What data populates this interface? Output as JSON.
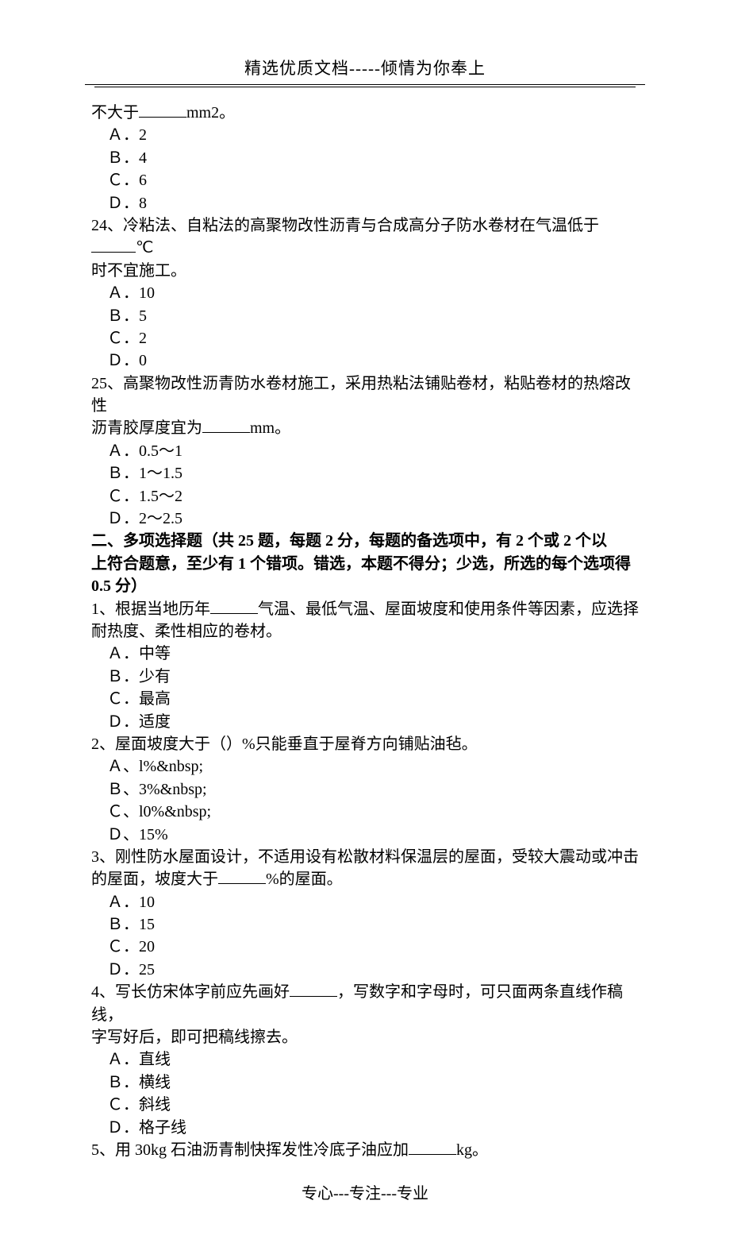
{
  "header": {
    "title": "精选优质文档-----倾情为你奉上"
  },
  "footer": {
    "text": "专心---专注---专业"
  },
  "blank_widths": {
    "w60": 60,
    "w56": 56
  },
  "content": {
    "q23_tail": {
      "pre": "不大于",
      "post": "mm2。",
      "opts": [
        "Ａ．2",
        "Ｂ．4",
        "Ｃ．6",
        "Ｄ．8"
      ]
    },
    "q24": {
      "pre": "24、冷粘法、自粘法的高聚物改性沥青与合成高分子防水卷材在气温低于",
      "post": "℃",
      "tail": "时不宜施工。",
      "opts": [
        "Ａ．10",
        "Ｂ．5",
        "Ｃ．2",
        "Ｄ．0"
      ]
    },
    "q25": {
      "line1": "25、高聚物改性沥青防水卷材施工，采用热粘法铺贴卷材，粘贴卷材的热熔改性",
      "pre2": "沥青胶厚度宜为",
      "post2": "mm。",
      "opts": [
        "Ａ．0.5～1",
        "Ｂ．1～1.5",
        "Ｃ．1.5～2",
        "Ｄ．2～2.5"
      ]
    },
    "section2": {
      "l1": "二、多项选择题（共 25 题，每题 2 分，每题的备选项中，有 2 个或 2 个以",
      "l2": "上符合题意，至少有 1 个错项。错选，本题不得分；少选，所选的每个选项得",
      "l3": "0.5 分）"
    },
    "m1": {
      "pre": "1、根据当地历年",
      "post": "气温、最低气温、屋面坡度和使用条件等因素，应选择",
      "tail": "耐热度、柔性相应的卷材。",
      "opts": [
        "Ａ．中等",
        "Ｂ．少有",
        "Ｃ．最高",
        "Ｄ．适度"
      ]
    },
    "m2": {
      "text": "2、屋面坡度大于（）%只能垂直于屋脊方向铺贴油毡。",
      "opts": [
        "Ａ、l%&nbsp;",
        "Ｂ、3%&nbsp;",
        "Ｃ、l0%&nbsp;",
        "Ｄ、15%"
      ]
    },
    "m3": {
      "line1": "3、刚性防水屋面设计，不适用设有松散材料保温层的屋面，受较大震动或冲击",
      "pre2": "的屋面，坡度大于",
      "post2": "%的屋面。",
      "opts": [
        "Ａ．10",
        "Ｂ．15",
        "Ｃ．20",
        "Ｄ．25"
      ]
    },
    "m4": {
      "pre": "4、写长仿宋体字前应先画好",
      "post": "，写数字和字母时，可只面两条直线作稿线，",
      "tail": "字写好后，即可把稿线擦去。",
      "opts": [
        "Ａ．直线",
        "Ｂ．横线",
        "Ｃ．斜线",
        "Ｄ．格子线"
      ]
    },
    "m5": {
      "pre": "5、用 30kg 石油沥青制快挥发性冷底子油应加",
      "post": "kg。"
    }
  }
}
